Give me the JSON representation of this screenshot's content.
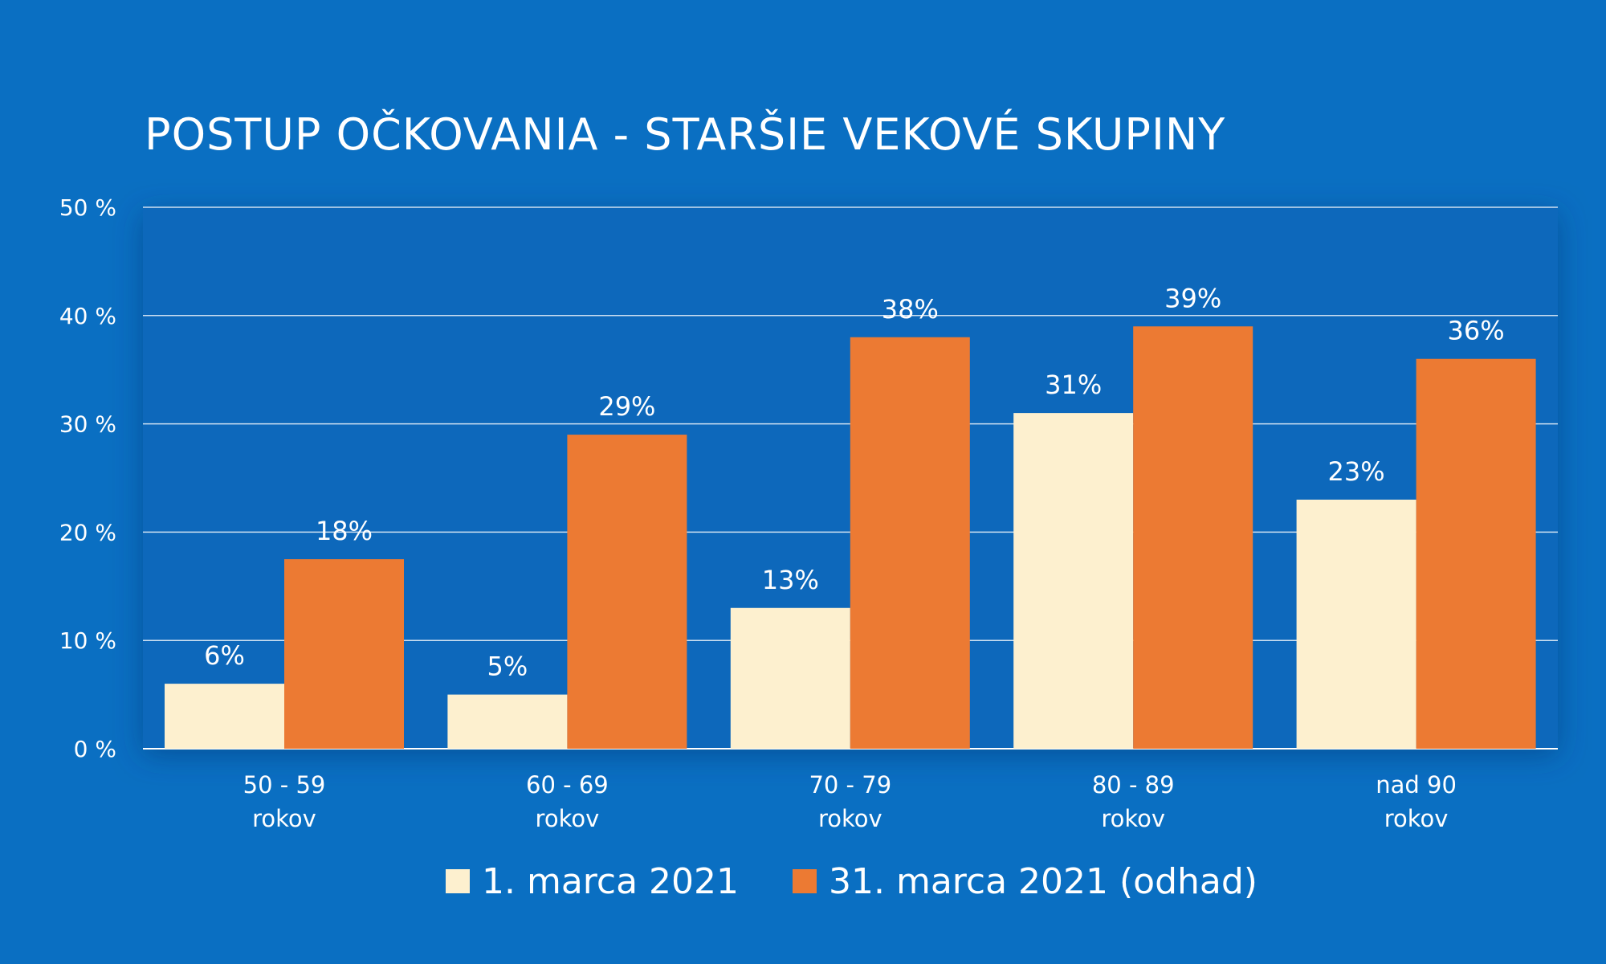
{
  "chart_data": {
    "type": "bar",
    "title": "POSTUP OČKOVANIA - STARŠIE VEKOVÉ SKUPINY",
    "xlabel": "",
    "ylabel": "",
    "categories": [
      [
        "50 - 59",
        "rokov"
      ],
      [
        "60 - 69",
        "rokov"
      ],
      [
        "70 - 79",
        "rokov"
      ],
      [
        "80 - 89",
        "rokov"
      ],
      [
        "nad 90",
        "rokov"
      ]
    ],
    "series": [
      {
        "name": "1. marca 2021",
        "color": "#fdf0cf",
        "values": [
          6,
          5,
          13,
          31,
          23
        ],
        "labels": [
          "6%",
          "5%",
          "13%",
          "31%",
          "23%"
        ]
      },
      {
        "name": "31. marca 2021 (odhad)",
        "color": "#ec7a33",
        "values": [
          17.5,
          29,
          38,
          39,
          36
        ],
        "labels": [
          "18%",
          "29%",
          "38%",
          "39%",
          "36%"
        ]
      }
    ],
    "ylim": [
      0,
      50
    ],
    "yticks": [
      0,
      10,
      20,
      30,
      40,
      50
    ],
    "ytick_labels": [
      "0 %",
      "10 %",
      "20 %",
      "30 %",
      "40 %",
      "50 %"
    ],
    "grid": true,
    "legend_position": "bottom"
  },
  "colors": {
    "background": "#0a6fc2",
    "plot_background": "#0868bb"
  }
}
